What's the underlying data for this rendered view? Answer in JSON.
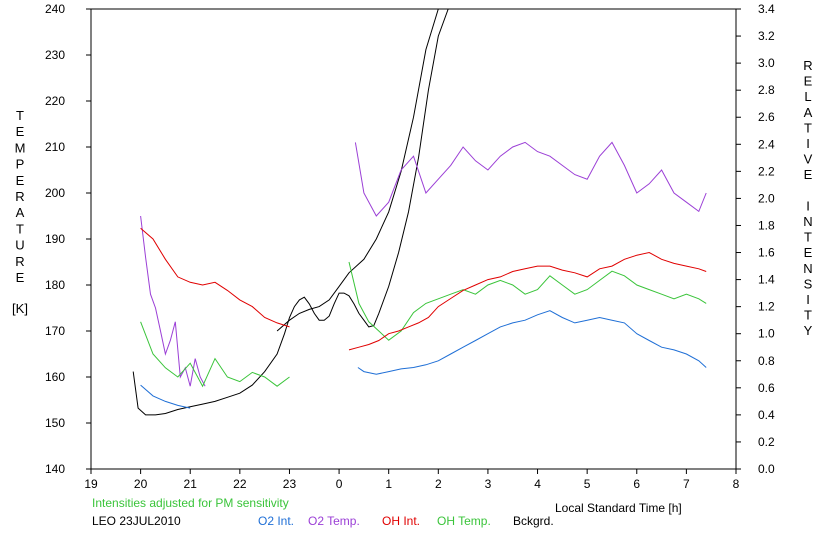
{
  "chart_data": {
    "type": "line",
    "station": "LEO 23JUL2010",
    "note": "Intensities adjusted for PM sensitivity",
    "xlabel": "Local Standard Time [h]",
    "ylabel_left_letters": [
      "T",
      "E",
      "M",
      "P",
      "E",
      "R",
      "A",
      "T",
      "U",
      "R",
      "E"
    ],
    "ylabel_left_unit": "[K]",
    "ylabel_right_letters": [
      "R",
      "E",
      "L",
      "A",
      "T",
      "I",
      "V",
      "E",
      "",
      "I",
      "N",
      "T",
      "E",
      "N",
      "S",
      "I",
      "T",
      "Y"
    ],
    "x_ticks": [
      "19",
      "20",
      "21",
      "22",
      "23",
      "0",
      "1",
      "2",
      "3",
      "4",
      "5",
      "6",
      "7",
      "8"
    ],
    "x_range": [
      19,
      32
    ],
    "y_left_ticks": [
      "140",
      "150",
      "160",
      "170",
      "180",
      "190",
      "200",
      "210",
      "220",
      "230",
      "240"
    ],
    "y_left_range": [
      140,
      240
    ],
    "y_right_ticks": [
      "0.0",
      "0.2",
      "0.4",
      "0.6",
      "0.8",
      "1.0",
      "1.2",
      "1.4",
      "1.6",
      "1.8",
      "2.0",
      "2.2",
      "2.4",
      "2.6",
      "2.8",
      "3.0",
      "3.2",
      "3.4"
    ],
    "y_right_range": [
      0,
      3.4
    ],
    "grid": false,
    "colors": {
      "o2_int": "#1f6fd6",
      "o2_temp": "#9b3fd6",
      "oh_int": "#e00000",
      "oh_temp": "#3ac43a",
      "bckgrd": "#000000",
      "note": "#3ac43a"
    },
    "series": [
      {
        "name": "O2 Int.",
        "axis": "right",
        "segments": [
          {
            "x": [
              20.0,
              20.25,
              20.5,
              20.75,
              21.0
            ],
            "y": [
              0.62,
              0.54,
              0.5,
              0.47,
              0.45
            ]
          },
          {
            "x": [
              24.38,
              24.5,
              24.75,
              25.0,
              25.25,
              25.5,
              25.75,
              26.0,
              26.25,
              26.5,
              26.75,
              27.0,
              27.25,
              27.5,
              27.75,
              28.0,
              28.25,
              28.5,
              28.75,
              29.0,
              29.25,
              29.5,
              29.75,
              30.0,
              30.25,
              30.5,
              30.75,
              31.0,
              31.25,
              31.4
            ],
            "y": [
              0.75,
              0.72,
              0.7,
              0.72,
              0.74,
              0.75,
              0.77,
              0.8,
              0.85,
              0.9,
              0.95,
              1.0,
              1.05,
              1.08,
              1.1,
              1.14,
              1.17,
              1.12,
              1.08,
              1.1,
              1.12,
              1.1,
              1.08,
              1.0,
              0.95,
              0.9,
              0.88,
              0.85,
              0.8,
              0.75
            ]
          }
        ]
      },
      {
        "name": "O2 Temp.",
        "axis": "left",
        "segments": [
          {
            "x": [
              20.0,
              20.1,
              20.2,
              20.3,
              20.4,
              20.5,
              20.6,
              20.7,
              20.8,
              20.9,
              21.0,
              21.1,
              21.2,
              21.3
            ],
            "y": [
              195,
              186,
              178,
              175,
              170,
              165,
              168,
              172,
              160,
              162,
              158,
              164,
              160,
              158
            ]
          },
          {
            "x": [
              24.33,
              24.5,
              24.75,
              25.0,
              25.25,
              25.5,
              25.75,
              26.0,
              26.25,
              26.5,
              26.75,
              27.0,
              27.25,
              27.5,
              27.75,
              28.0,
              28.25,
              28.5,
              28.75,
              29.0,
              29.25,
              29.5,
              29.75,
              30.0,
              30.25,
              30.5,
              30.75,
              31.0,
              31.25,
              31.4
            ],
            "y": [
              211,
              200,
              195,
              198,
              205,
              208,
              200,
              203,
              206,
              210,
              207,
              205,
              208,
              210,
              211,
              209,
              208,
              206,
              204,
              203,
              208,
              211,
              206,
              200,
              202,
              205,
              200,
              198,
              196,
              200
            ]
          }
        ]
      },
      {
        "name": "OH Int.",
        "axis": "right",
        "segments": [
          {
            "x": [
              20.0,
              20.25,
              20.5,
              20.75,
              21.0,
              21.25,
              21.5,
              21.75,
              22.0,
              22.25,
              22.5,
              22.75,
              23.0
            ],
            "y": [
              1.78,
              1.7,
              1.55,
              1.42,
              1.38,
              1.36,
              1.38,
              1.32,
              1.25,
              1.2,
              1.12,
              1.08,
              1.05
            ]
          },
          {
            "x": [
              24.2,
              24.4,
              24.6,
              24.8,
              25.0,
              25.2,
              25.4,
              25.6,
              25.8,
              26.0,
              26.25,
              26.5,
              26.75,
              27.0,
              27.25,
              27.5,
              27.75,
              28.0,
              28.25,
              28.5,
              28.75,
              29.0,
              29.25,
              29.5,
              29.75,
              30.0,
              30.25,
              30.5,
              30.75,
              31.0,
              31.25,
              31.4
            ],
            "y": [
              0.88,
              0.9,
              0.92,
              0.95,
              1.0,
              1.02,
              1.05,
              1.08,
              1.12,
              1.2,
              1.26,
              1.32,
              1.36,
              1.4,
              1.42,
              1.46,
              1.48,
              1.5,
              1.5,
              1.47,
              1.45,
              1.42,
              1.48,
              1.5,
              1.55,
              1.58,
              1.6,
              1.55,
              1.52,
              1.5,
              1.48,
              1.46
            ]
          }
        ]
      },
      {
        "name": "OH Temp.",
        "axis": "left",
        "segments": [
          {
            "x": [
              20.0,
              20.25,
              20.5,
              20.75,
              21.0,
              21.25,
              21.5,
              21.75,
              22.0,
              22.25,
              22.5,
              22.75,
              23.0
            ],
            "y": [
              172,
              165,
              162,
              160,
              163,
              158,
              164,
              160,
              159,
              161,
              160,
              158,
              160
            ]
          },
          {
            "x": [
              24.2,
              24.4,
              24.6,
              24.8,
              25.0,
              25.25,
              25.5,
              25.75,
              26.0,
              26.25,
              26.5,
              26.75,
              27.0,
              27.25,
              27.5,
              27.75,
              28.0,
              28.25,
              28.5,
              28.75,
              29.0,
              29.25,
              29.5,
              29.75,
              30.0,
              30.25,
              30.5,
              30.75,
              31.0,
              31.25,
              31.4
            ],
            "y": [
              185,
              176,
              172,
              170,
              168,
              170,
              174,
              176,
              177,
              178,
              179,
              178,
              180,
              181,
              180,
              178,
              179,
              182,
              180,
              178,
              179,
              181,
              183,
              182,
              180,
              179,
              178,
              177,
              178,
              177,
              176
            ]
          }
        ]
      },
      {
        "name": "Bckgrd.",
        "axis": "right",
        "segments": [
          {
            "x": [
              19.85,
              19.95,
              20.1,
              20.3,
              20.5,
              20.75,
              21.0,
              21.25,
              21.5,
              21.75,
              22.0,
              22.25,
              22.5,
              22.75,
              22.9,
              23.0,
              23.1,
              23.2,
              23.3,
              23.4,
              23.5,
              23.6,
              23.7,
              23.8,
              23.9,
              24.0,
              24.1,
              24.2,
              24.3,
              24.4,
              24.5,
              24.6,
              24.7,
              24.8
            ],
            "y": [
              0.72,
              0.45,
              0.4,
              0.4,
              0.41,
              0.44,
              0.46,
              0.48,
              0.5,
              0.53,
              0.56,
              0.62,
              0.72,
              0.85,
              1.0,
              1.12,
              1.2,
              1.25,
              1.27,
              1.22,
              1.15,
              1.1,
              1.1,
              1.13,
              1.22,
              1.3,
              1.3,
              1.28,
              1.22,
              1.15,
              1.1,
              1.05,
              1.06,
              1.15
            ]
          },
          {
            "x": [
              24.8,
              25.0,
              25.2,
              25.4,
              25.6,
              25.8,
              26.0,
              26.2,
              26.4,
              26.6,
              26.8,
              27.0,
              27.2,
              27.4,
              27.6
            ],
            "y": [
              1.15,
              1.35,
              1.6,
              1.9,
              2.3,
              2.8,
              3.2,
              3.4,
              3.4,
              3.4,
              3.4,
              3.4,
              3.4,
              3.4,
              3.4
            ]
          },
          {
            "x": [
              22.75,
              23.0,
              23.2,
              23.4,
              23.6,
              23.8,
              24.0,
              24.2,
              24.5,
              24.75,
              25.0,
              25.25,
              25.5,
              25.75,
              26.0,
              26.25,
              26.5,
              26.75,
              27.0,
              27.25,
              27.5,
              27.75,
              28.0,
              28.25,
              28.5,
              28.75,
              29.0,
              29.25,
              29.5,
              29.75,
              30.0,
              30.25,
              30.5,
              30.75,
              31.0,
              31.25,
              31.4,
              31.55,
              31.65
            ],
            "y": [
              1.02,
              1.1,
              1.15,
              1.18,
              1.2,
              1.25,
              1.35,
              1.45,
              1.55,
              1.7,
              1.9,
              2.2,
              2.6,
              3.1,
              3.4,
              3.4,
              3.4,
              3.4,
              3.4,
              3.4,
              3.4,
              3.4,
              3.4,
              3.4,
              3.4,
              3.4,
              3.4,
              3.4,
              3.4,
              3.4,
              3.4,
              3.4,
              3.4,
              3.4,
              3.4,
              3.4,
              3.4,
              3.4,
              3.4
            ]
          }
        ]
      }
    ]
  },
  "legend": {
    "items": [
      {
        "label": "O2 Int.",
        "color": "#1f6fd6"
      },
      {
        "label": "O2 Temp.",
        "color": "#9b3fd6"
      },
      {
        "label": "OH Int.",
        "color": "#e00000"
      },
      {
        "label": "OH Temp.",
        "color": "#3ac43a"
      },
      {
        "label": "Bckgrd.",
        "color": "#000000"
      }
    ]
  }
}
